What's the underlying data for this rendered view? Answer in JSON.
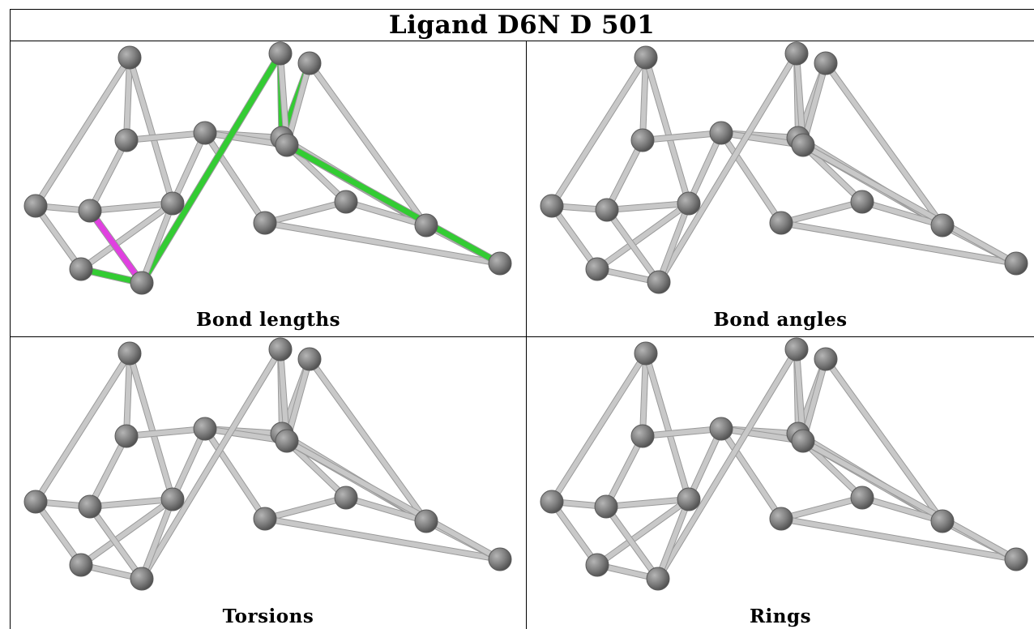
{
  "title": "Ligand D6N D 501",
  "panels": [
    {
      "caption": "Bond lengths"
    },
    {
      "caption": "Bond angles"
    },
    {
      "caption": "Torsions"
    },
    {
      "caption": "Rings"
    }
  ],
  "colors": {
    "bond": "#c8c8c8",
    "atom": "#7a7a7a",
    "highlight_green": "#33cc33",
    "highlight_magenta": "#e040e0"
  }
}
